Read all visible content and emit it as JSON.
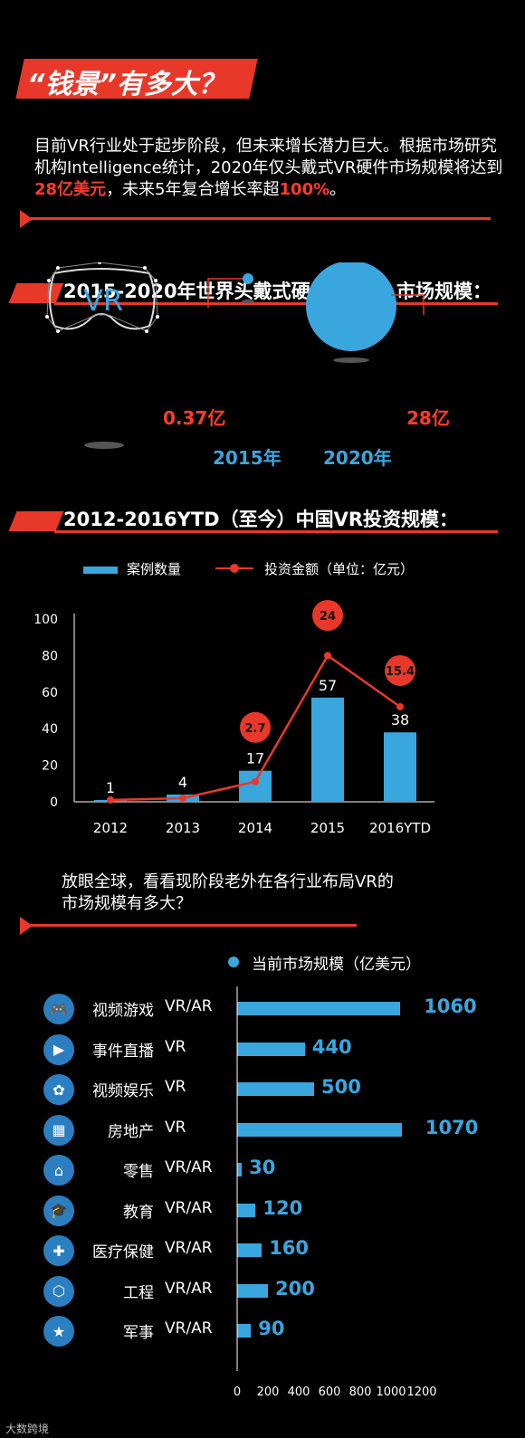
{
  "header": {
    "title": "“钱景”有多大？",
    "intro": {
      "part1": "目前VR行业处于起步阶段，但未来增长潜力巨大。根据市场研究机构Intelligence统计，2020年仅头戴式VR硬件市场规模将达到",
      "highlight1": "28亿美元",
      "part2": "，未来5年复合增长率超",
      "highlight2": "100%",
      "part3": "。"
    }
  },
  "section1": {
    "title": "2015-2020年世界头戴式硬件（VR）市场规模：",
    "headset_label": "VR",
    "items": [
      {
        "year": "2015年",
        "value": "0.37亿"
      },
      {
        "year": "2020年",
        "value": "28亿"
      }
    ],
    "colors": {
      "accent": "#3aa6de",
      "red": "#e8382a"
    }
  },
  "section2": {
    "title": "2012-2016YTD（至今）中国VR投资规模：",
    "legend": {
      "bars": "案例数量",
      "line": "投资金额（单位：亿元）"
    }
  },
  "section3": {
    "intro": "放眼全球，看看现阶段老外在各行业布局VR的市场规模有多大？",
    "legend": "当前市场规模（亿美元）",
    "industries": [
      {
        "name": "视频游戏",
        "type": "VR/AR",
        "icon": "gamepad-icon",
        "glyph": "🎮"
      },
      {
        "name": "事件直播",
        "type": "VR",
        "icon": "play-icon",
        "glyph": "▶"
      },
      {
        "name": "视频娱乐",
        "type": "VR",
        "icon": "film-reel-icon",
        "glyph": "✿"
      },
      {
        "name": "房地产",
        "type": "VR",
        "icon": "building-icon",
        "glyph": "▦"
      },
      {
        "name": "零售",
        "type": "VR/AR",
        "icon": "shop-icon",
        "glyph": "⌂"
      },
      {
        "name": "教育",
        "type": "VR/AR",
        "icon": "graduation-cap-icon",
        "glyph": "🎓"
      },
      {
        "name": "医疗保健",
        "type": "VR/AR",
        "icon": "medical-kit-icon",
        "glyph": "✚"
      },
      {
        "name": "工程",
        "type": "VR/AR",
        "icon": "cube-icon",
        "glyph": "⬡"
      },
      {
        "name": "军事",
        "type": "VR/AR",
        "icon": "military-badge-icon",
        "glyph": "★"
      }
    ]
  },
  "footer": {
    "brand": "大数跨境"
  },
  "chart_data": [
    {
      "type": "bar",
      "title": "2012-2016YTD（至今）中国VR投资规模：",
      "categories": [
        "2012",
        "2013",
        "2014",
        "2015",
        "2016YTD"
      ],
      "ylim": [
        0,
        100
      ],
      "yticks": [
        0,
        20,
        40,
        60,
        80,
        100
      ],
      "grid": false,
      "legend_position": "top",
      "series": [
        {
          "name": "案例数量",
          "kind": "bar",
          "color": "#3aa6de",
          "values": [
            1,
            4,
            17,
            57,
            38
          ]
        },
        {
          "name": "投资金额（单位：亿元）",
          "kind": "line",
          "color": "#e8382a",
          "values": [
            null,
            null,
            2.7,
            24,
            15.4
          ],
          "line_y": [
            1,
            2,
            11,
            80,
            52
          ]
        }
      ]
    },
    {
      "type": "bar",
      "orientation": "horizontal",
      "title": "当前市场规模（亿美元）",
      "categories": [
        "视频游戏",
        "事件直播",
        "视频娱乐",
        "房地产",
        "零售",
        "教育",
        "医疗保健",
        "工程",
        "军事"
      ],
      "values": [
        1060,
        440,
        500,
        1070,
        30,
        120,
        160,
        200,
        90
      ],
      "xlim": [
        0,
        1200
      ],
      "xticks": [
        0,
        200,
        400,
        600,
        800,
        1000,
        1200
      ],
      "color": "#3aa6de"
    }
  ]
}
